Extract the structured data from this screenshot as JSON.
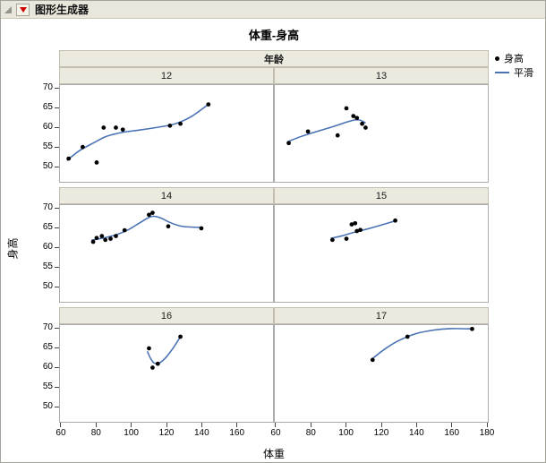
{
  "window": {
    "title": "图形生成器"
  },
  "graph": {
    "title": "体重-身高",
    "x_label": "体重",
    "y_label": "身高",
    "facet_label": "年龄",
    "legend": {
      "point_label": "身高",
      "line_label": "平滑"
    }
  },
  "colors": {
    "smoother": "#4a72b4",
    "point": "#000000",
    "band_bg": "#eceade",
    "band_border": "#c2bfb0",
    "panel_border": "#ababab"
  },
  "chart_data": {
    "type": "scatter",
    "title": "体重-身高",
    "xlabel": "体重",
    "ylabel": "身高",
    "facet_variable": "年龄",
    "legend": [
      "身高",
      "平滑"
    ],
    "legend_position": "right",
    "grid": false,
    "x_axis": {
      "range": [
        59,
        181
      ],
      "ticks_left": [
        60,
        80,
        100,
        120,
        140,
        160
      ],
      "ticks_right": [
        60,
        80,
        100,
        120,
        140,
        160,
        180
      ]
    },
    "y_axis": {
      "range": [
        46,
        71
      ],
      "ticks": [
        70,
        65,
        60,
        55,
        50
      ]
    },
    "facets": [
      {
        "label": "12",
        "points": [
          [
            64,
            52
          ],
          [
            72,
            55
          ],
          [
            80,
            51
          ],
          [
            84,
            60
          ],
          [
            91,
            60
          ],
          [
            95,
            59.5
          ],
          [
            122,
            60.5
          ],
          [
            128,
            61
          ],
          [
            144,
            66
          ]
        ],
        "smooth": [
          [
            63,
            51.5
          ],
          [
            70,
            54
          ],
          [
            78,
            56
          ],
          [
            86,
            57.8
          ],
          [
            95,
            58.8
          ],
          [
            105,
            59.4
          ],
          [
            115,
            60.1
          ],
          [
            125,
            61
          ],
          [
            134,
            62.8
          ],
          [
            144,
            66
          ]
        ]
      },
      {
        "label": "13",
        "points": [
          [
            67,
            56
          ],
          [
            78,
            59
          ],
          [
            95,
            58
          ],
          [
            100,
            65
          ],
          [
            104,
            63
          ],
          [
            106,
            62.5
          ],
          [
            109,
            61
          ],
          [
            111,
            60
          ]
        ],
        "smooth": [
          [
            66,
            56.3
          ],
          [
            74,
            57.7
          ],
          [
            83,
            59
          ],
          [
            92,
            60.2
          ],
          [
            100,
            61.4
          ],
          [
            105,
            62
          ],
          [
            108,
            61.9
          ],
          [
            111,
            61.2
          ]
        ]
      },
      {
        "label": "14",
        "points": [
          [
            78,
            61.5
          ],
          [
            80,
            62.5
          ],
          [
            83,
            63
          ],
          [
            85,
            62
          ],
          [
            88,
            62.3
          ],
          [
            91,
            63
          ],
          [
            96,
            64.5
          ],
          [
            110,
            68.5
          ],
          [
            112,
            69
          ],
          [
            121,
            65.5
          ],
          [
            140,
            65
          ]
        ],
        "smooth": [
          [
            77,
            61.9
          ],
          [
            84,
            62.5
          ],
          [
            91,
            63.3
          ],
          [
            98,
            64.6
          ],
          [
            105,
            66.5
          ],
          [
            111,
            68
          ],
          [
            116,
            67.8
          ],
          [
            122,
            66.5
          ],
          [
            129,
            65.5
          ],
          [
            140,
            65.2
          ]
        ]
      },
      {
        "label": "15",
        "points": [
          [
            92,
            62
          ],
          [
            100,
            62.3
          ],
          [
            103,
            66
          ],
          [
            105,
            66.3
          ],
          [
            106,
            64.3
          ],
          [
            108,
            64.6
          ],
          [
            128,
            67
          ]
        ],
        "smooth": [
          [
            91,
            62.4
          ],
          [
            97,
            63
          ],
          [
            104,
            63.9
          ],
          [
            111,
            64.7
          ],
          [
            119,
            65.7
          ],
          [
            128,
            66.9
          ]
        ]
      },
      {
        "label": "16",
        "points": [
          [
            110,
            65
          ],
          [
            112,
            60
          ],
          [
            115,
            61
          ],
          [
            128,
            68
          ]
        ],
        "smooth": [
          [
            109,
            64.2
          ],
          [
            111,
            62.3
          ],
          [
            113,
            61.2
          ],
          [
            116,
            61.2
          ],
          [
            120,
            62.8
          ],
          [
            124,
            65.2
          ],
          [
            128,
            68
          ]
        ]
      },
      {
        "label": "17",
        "points": [
          [
            115,
            62
          ],
          [
            135,
            68
          ],
          [
            172,
            70
          ]
        ],
        "smooth": [
          [
            114,
            62
          ],
          [
            122,
            64.8
          ],
          [
            130,
            67
          ],
          [
            140,
            68.8
          ],
          [
            150,
            69.7
          ],
          [
            160,
            70.1
          ],
          [
            172,
            70
          ]
        ]
      }
    ]
  }
}
